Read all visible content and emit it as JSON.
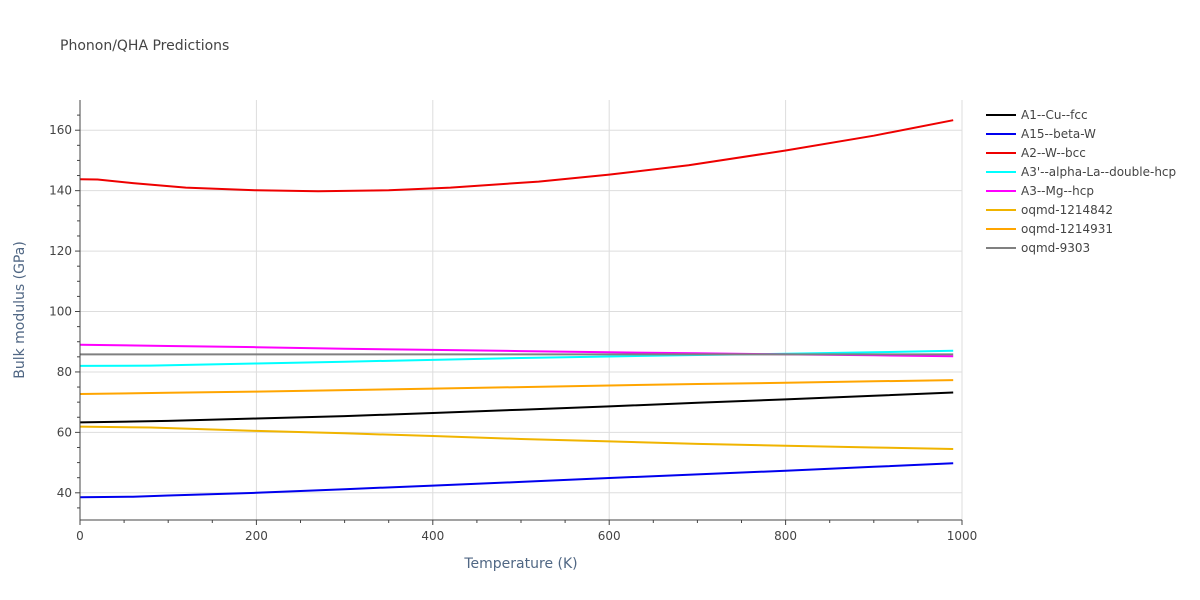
{
  "chart_data": {
    "type": "line",
    "title": "Phonon/QHA Predictions",
    "xlabel": "Temperature (K)",
    "ylabel": "Bulk modulus (GPa)",
    "xlim": [
      0,
      1000
    ],
    "ylim": [
      31,
      170
    ],
    "xticks": [
      0,
      200,
      400,
      600,
      800,
      1000
    ],
    "yticks": [
      40,
      60,
      80,
      100,
      120,
      140,
      160
    ],
    "grid": true,
    "legend_position": "top-right-outside",
    "series": [
      {
        "name": "A1--Cu--fcc",
        "color": "#000000",
        "x": [
          0,
          100,
          200,
          300,
          400,
          500,
          600,
          700,
          800,
          900,
          990
        ],
        "y": [
          63.3,
          63.8,
          64.6,
          65.4,
          66.4,
          67.5,
          68.6,
          69.8,
          70.9,
          72.1,
          73.2
        ]
      },
      {
        "name": "A15--beta-W",
        "color": "#0000ee",
        "x": [
          0,
          60,
          100,
          200,
          300,
          400,
          500,
          600,
          700,
          800,
          900,
          990
        ],
        "y": [
          38.5,
          38.7,
          39.1,
          40.0,
          41.2,
          42.4,
          43.6,
          44.9,
          46.1,
          47.3,
          48.6,
          49.8
        ]
      },
      {
        "name": "A2--W--bcc",
        "color": "#ee0000",
        "x": [
          0,
          20,
          60,
          120,
          200,
          270,
          350,
          420,
          520,
          600,
          690,
          800,
          900,
          990
        ],
        "y": [
          143.8,
          143.7,
          142.5,
          141.0,
          140.1,
          139.8,
          140.1,
          141.0,
          143.0,
          145.3,
          148.4,
          153.3,
          158.2,
          163.3
        ]
      },
      {
        "name": "A3'--alpha-La--double-hcp",
        "color": "#00ffff",
        "x": [
          0,
          80,
          200,
          300,
          400,
          500,
          600,
          700,
          800,
          900,
          990
        ],
        "y": [
          82.0,
          82.1,
          82.8,
          83.4,
          84.0,
          84.6,
          85.1,
          85.6,
          86.0,
          86.5,
          87.0
        ]
      },
      {
        "name": "A3--Mg--hcp",
        "color": "#ff00ff",
        "x": [
          0,
          100,
          200,
          300,
          400,
          500,
          600,
          700,
          800,
          900,
          990
        ],
        "y": [
          89.0,
          88.6,
          88.2,
          87.7,
          87.3,
          86.9,
          86.5,
          86.2,
          85.8,
          85.5,
          85.2
        ]
      },
      {
        "name": "oqmd-1214842",
        "color": "#f0b400",
        "x": [
          0,
          80,
          200,
          300,
          400,
          500,
          600,
          700,
          800,
          900,
          990
        ],
        "y": [
          61.9,
          61.6,
          60.5,
          59.7,
          58.8,
          57.8,
          57.0,
          56.2,
          55.6,
          55.0,
          54.5
        ]
      },
      {
        "name": "oqmd-1214931",
        "color": "#ffa500",
        "x": [
          0,
          100,
          200,
          300,
          400,
          500,
          600,
          700,
          800,
          900,
          990
        ],
        "y": [
          72.7,
          73.1,
          73.5,
          74.0,
          74.5,
          75.0,
          75.5,
          76.0,
          76.4,
          76.9,
          77.3
        ]
      },
      {
        "name": "oqmd-9303",
        "color": "#808080",
        "x": [
          0,
          200,
          400,
          600,
          800,
          990
        ],
        "y": [
          85.8,
          85.8,
          85.8,
          85.8,
          85.8,
          85.8
        ]
      }
    ]
  }
}
